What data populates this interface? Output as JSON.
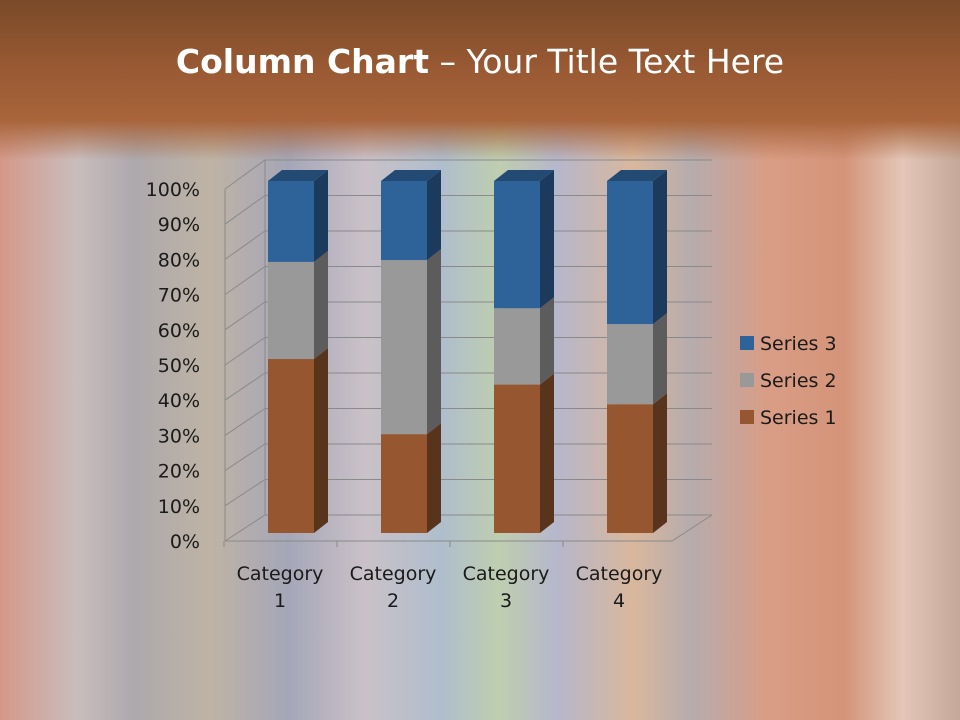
{
  "slide": {
    "title_bold": "Column Chart",
    "title_rest": " – Your Title Text Here"
  },
  "chart_data": {
    "type": "bar",
    "stacking": "percent",
    "style": "3d",
    "categories": [
      "Category 1",
      "Category 2",
      "Category 3",
      "Category 4"
    ],
    "category_lines": [
      [
        "Category",
        "1"
      ],
      [
        "Category",
        "2"
      ],
      [
        "Category",
        "3"
      ],
      [
        "Category",
        "4"
      ]
    ],
    "series": [
      {
        "name": "Series 1",
        "values": [
          4.3,
          2.5,
          3.5,
          4.5
        ],
        "color": "#955630"
      },
      {
        "name": "Series 2",
        "values": [
          2.4,
          4.4,
          1.8,
          2.8
        ],
        "color": "#999999"
      },
      {
        "name": "Series 3",
        "values": [
          2,
          2,
          3,
          5
        ],
        "color": "#2e6399"
      }
    ],
    "yticks": [
      "0%",
      "10%",
      "20%",
      "30%",
      "40%",
      "50%",
      "60%",
      "70%",
      "80%",
      "90%",
      "100%"
    ],
    "ylim": [
      0,
      100
    ],
    "grid": true,
    "legend": "right"
  }
}
